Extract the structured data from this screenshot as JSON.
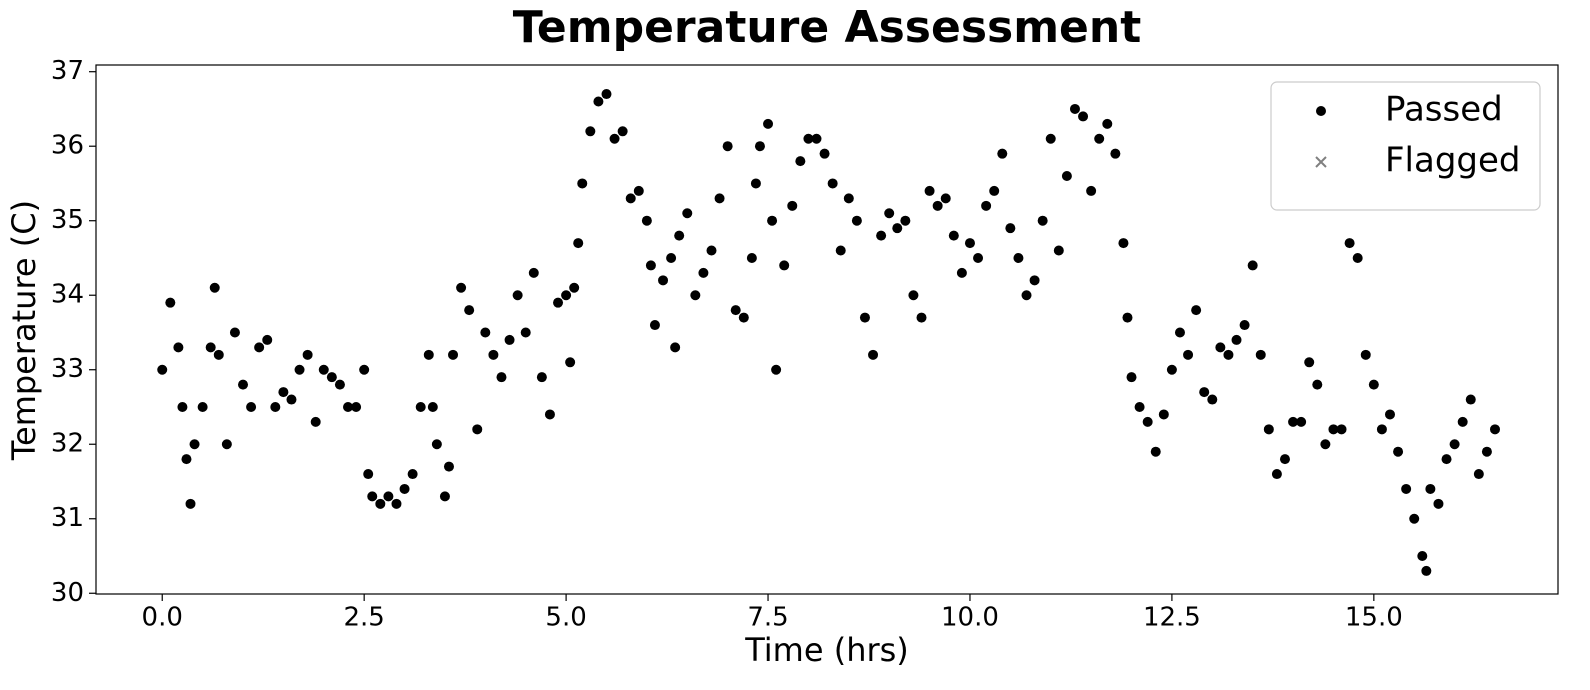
{
  "chart_data": {
    "type": "scatter",
    "title": "Temperature Assessment",
    "x_label": "Time (hrs)",
    "y_label": "Temperature (C)",
    "xlim": [
      -0.82,
      17.28
    ],
    "ylim": [
      29.99,
      37.09
    ],
    "xticks": [
      {
        "value": 0,
        "label": "0.0"
      },
      2.5,
      {
        "value": 5,
        "label": "5.0"
      },
      7.5,
      {
        "value": 10,
        "label": "10.0"
      },
      12.5,
      {
        "value": 15,
        "label": "15.0"
      }
    ],
    "yticks": [
      30,
      31,
      32,
      33,
      34,
      35,
      36,
      37
    ],
    "legend": "upper right",
    "series": [
      {
        "name": "Passed",
        "color": "#000000",
        "marker": "circle",
        "x": [
          0.0,
          0.1,
          0.2,
          0.25,
          0.3,
          0.35,
          0.4,
          0.5,
          0.6,
          0.65,
          0.7,
          0.8,
          0.9,
          1.0,
          1.1,
          1.2,
          1.3,
          1.4,
          1.5,
          1.6,
          1.7,
          1.8,
          1.9,
          2.0,
          2.1,
          2.2,
          2.3,
          2.4,
          2.5,
          2.55,
          2.6,
          2.7,
          2.8,
          2.9,
          3.0,
          3.1,
          3.2,
          3.3,
          3.35,
          3.4,
          3.5,
          3.55,
          3.6,
          3.7,
          3.8,
          3.9,
          4.0,
          4.1,
          4.2,
          4.3,
          4.4,
          4.5,
          4.6,
          4.7,
          4.8,
          4.9,
          5.0,
          5.05,
          5.1,
          5.15,
          5.2,
          5.3,
          5.4,
          5.5,
          5.6,
          5.7,
          5.8,
          5.9,
          6.0,
          6.05,
          6.1,
          6.2,
          6.3,
          6.35,
          6.4,
          6.5,
          6.6,
          6.7,
          6.8,
          6.9,
          7.0,
          7.1,
          7.2,
          7.3,
          7.35,
          7.4,
          7.5,
          7.55,
          7.6,
          7.7,
          7.8,
          7.9,
          8.0,
          8.1,
          8.2,
          8.3,
          8.4,
          8.5,
          8.6,
          8.7,
          8.8,
          8.9,
          9.0,
          9.1,
          9.2,
          9.3,
          9.4,
          9.5,
          9.6,
          9.7,
          9.8,
          9.9,
          10.0,
          10.1,
          10.2,
          10.3,
          10.4,
          10.5,
          10.6,
          10.7,
          10.8,
          10.9,
          11.0,
          11.1,
          11.2,
          11.3,
          11.4,
          11.5,
          11.6,
          11.7,
          11.8,
          11.9,
          11.95,
          12.0,
          12.1,
          12.2,
          12.3,
          12.4,
          12.5,
          12.6,
          12.7,
          12.8,
          12.9,
          13.0,
          13.1,
          13.2,
          13.3,
          13.4,
          13.5,
          13.6,
          13.7,
          13.8,
          13.9,
          14.0,
          14.1,
          14.2,
          14.3,
          14.4,
          14.5,
          14.6,
          14.7,
          14.8,
          14.9,
          15.0,
          15.1,
          15.2,
          15.3,
          15.4,
          15.5,
          15.6,
          15.65,
          15.7,
          15.8,
          15.9,
          16.0,
          16.1,
          16.2,
          16.3,
          16.4,
          16.5
        ],
        "values": [
          33.0,
          33.9,
          33.3,
          32.5,
          31.8,
          31.2,
          32.0,
          32.5,
          33.3,
          34.1,
          33.2,
          32.0,
          33.5,
          32.8,
          32.5,
          33.3,
          33.4,
          32.5,
          32.7,
          32.6,
          33.0,
          33.2,
          32.3,
          33.0,
          32.9,
          32.8,
          32.5,
          32.5,
          33.0,
          31.6,
          31.3,
          31.2,
          31.3,
          31.2,
          31.4,
          31.6,
          32.5,
          33.2,
          32.5,
          32.0,
          31.3,
          31.7,
          33.2,
          34.1,
          33.8,
          32.2,
          33.5,
          33.2,
          32.9,
          33.4,
          34.0,
          33.5,
          34.3,
          32.9,
          32.4,
          33.9,
          34.0,
          33.1,
          34.1,
          34.7,
          35.5,
          36.2,
          36.6,
          36.7,
          36.1,
          36.2,
          35.3,
          35.4,
          35.0,
          34.4,
          33.6,
          34.2,
          34.5,
          33.3,
          34.8,
          35.1,
          34.0,
          34.3,
          34.6,
          35.3,
          36.0,
          33.8,
          33.7,
          34.5,
          35.5,
          36.0,
          36.3,
          35.0,
          33.0,
          34.4,
          35.2,
          35.8,
          36.1,
          36.1,
          35.9,
          35.5,
          34.6,
          35.3,
          35.0,
          33.7,
          33.2,
          34.8,
          35.1,
          34.9,
          35.0,
          34.0,
          33.7,
          35.4,
          35.2,
          35.3,
          34.8,
          34.3,
          34.7,
          34.5,
          35.2,
          35.4,
          35.9,
          34.9,
          34.5,
          34.0,
          34.2,
          35.0,
          36.1,
          34.6,
          35.6,
          36.5,
          36.4,
          35.4,
          36.1,
          36.3,
          35.9,
          34.7,
          33.7,
          32.9,
          32.5,
          32.3,
          31.9,
          32.4,
          33.0,
          33.5,
          33.2,
          33.8,
          32.7,
          32.6,
          33.3,
          33.2,
          33.4,
          33.6,
          34.4,
          33.2,
          32.2,
          31.6,
          31.8,
          32.3,
          32.3,
          33.1,
          32.8,
          32.0,
          32.2,
          32.2,
          34.7,
          34.5,
          33.2,
          32.8,
          32.2,
          32.4,
          31.9,
          31.4,
          31.0,
          30.5,
          30.3,
          31.4,
          31.2,
          31.8,
          32.0,
          32.3,
          32.6,
          31.6,
          31.9,
          32.2
        ]
      },
      {
        "name": "Flagged",
        "color": "#808080",
        "marker": "x",
        "x": [],
        "values": []
      }
    ]
  }
}
